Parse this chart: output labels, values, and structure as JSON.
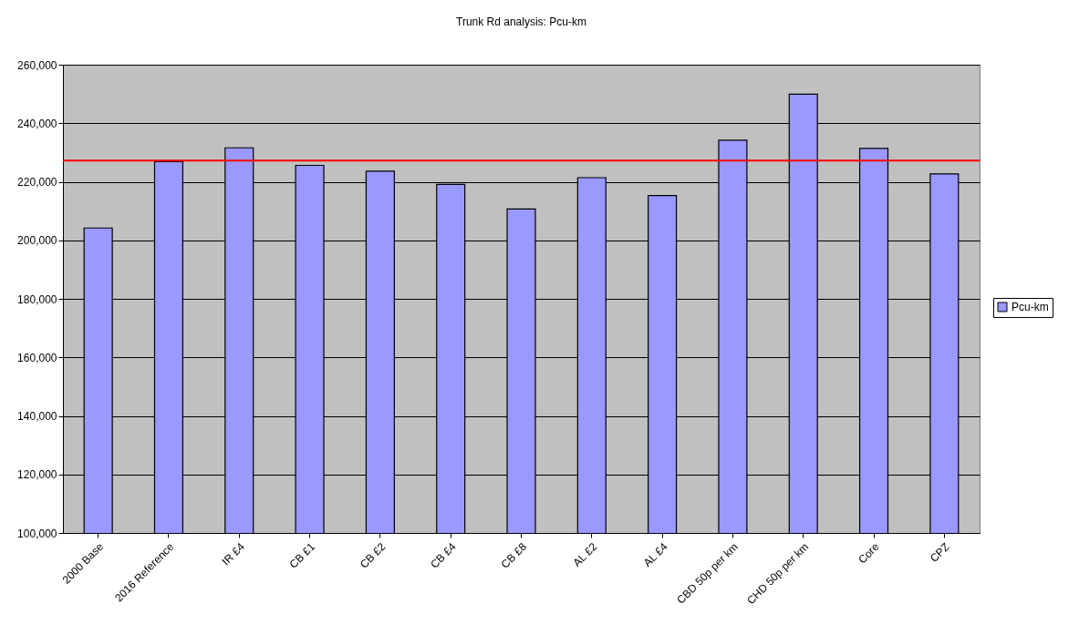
{
  "chart_data": {
    "type": "bar",
    "title": "Trunk Rd analysis: Pcu-km",
    "categories": [
      "2000 Base",
      "2016 Reference",
      "IR £4",
      "CB £1",
      "CB £2",
      "CB £4",
      "CB £8",
      "AL £2",
      "AL £4",
      "CBD 50p per km",
      "CHD 50p per km",
      "Core",
      "CPZ"
    ],
    "series": [
      {
        "name": "Pcu-km",
        "color": "#9999ff",
        "values": [
          204200,
          226900,
          231600,
          225600,
          223600,
          219100,
          210700,
          221400,
          215300,
          234200,
          249900,
          231400,
          222700
        ]
      }
    ],
    "ylim": [
      100000,
      260000
    ],
    "yticks": [
      {
        "value": 100000,
        "label": "100,000"
      },
      {
        "value": 120000,
        "label": "120,000"
      },
      {
        "value": 140000,
        "label": "140,000"
      },
      {
        "value": 160000,
        "label": "160,000"
      },
      {
        "value": 180000,
        "label": "180,000"
      },
      {
        "value": 200000,
        "label": "200,000"
      },
      {
        "value": 220000,
        "label": "220,000"
      },
      {
        "value": 240000,
        "label": "240,000"
      },
      {
        "value": 260000,
        "label": "260,000"
      }
    ],
    "grid": "y",
    "legend": "right",
    "ref_lines": [
      {
        "axis": "y",
        "value": 227200,
        "color": "#ff0000"
      }
    ]
  }
}
